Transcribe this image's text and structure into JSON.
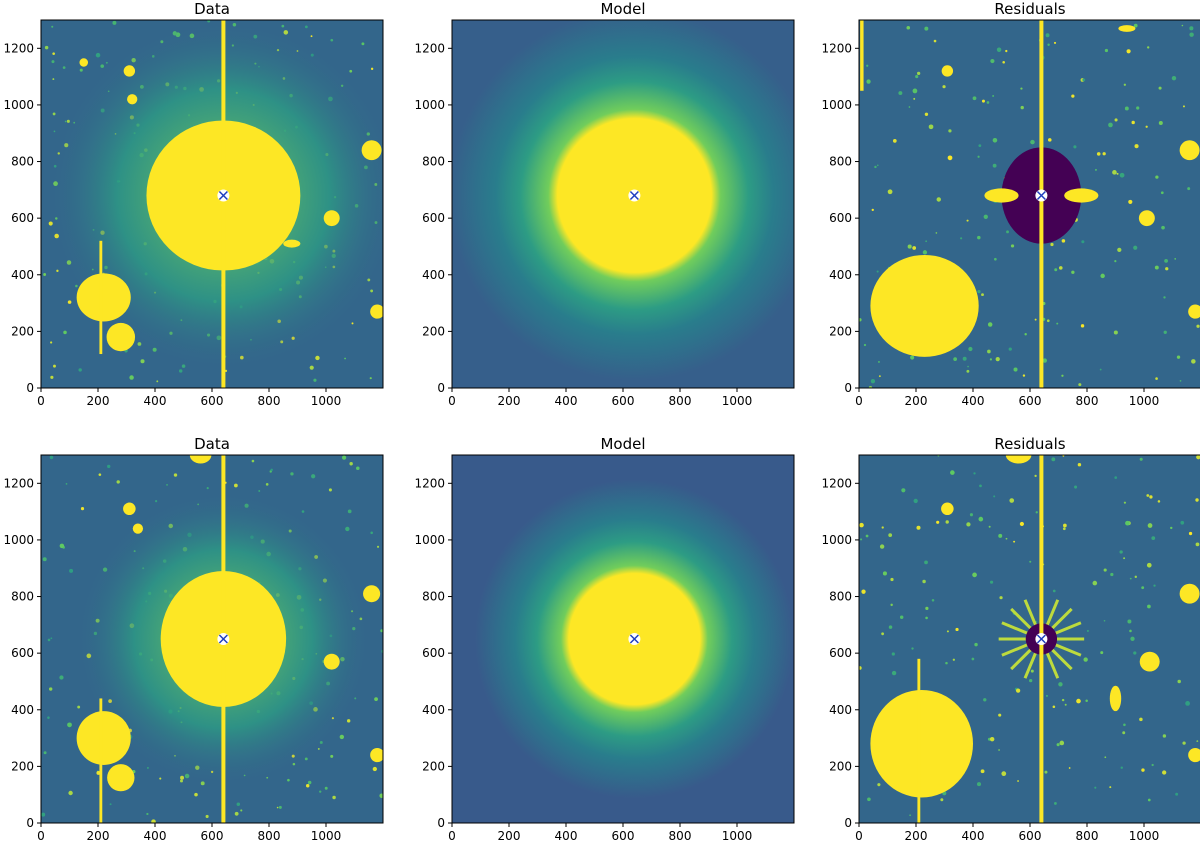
{
  "chart_data": [
    {
      "type": "heatmap",
      "title": "Data",
      "row": 0,
      "col": 0,
      "xlim": [
        0,
        1200
      ],
      "ylim": [
        0,
        1300
      ],
      "xticks": [
        0,
        200,
        400,
        600,
        800,
        1000
      ],
      "yticks": [
        0,
        200,
        400,
        600,
        800,
        1000,
        1200
      ],
      "center_marker": {
        "x": 640,
        "y": 680,
        "symbol": "x"
      },
      "colormap": [
        "#440154",
        "#3b528b",
        "#21918c",
        "#5ec962",
        "#fde725"
      ],
      "features": [
        {
          "kind": "halo",
          "x": 640,
          "y": 680,
          "r": 620,
          "level": 0.45
        },
        {
          "kind": "source",
          "x": 640,
          "y": 680,
          "rx": 270,
          "ry": 265,
          "level": 1
        },
        {
          "kind": "source",
          "x": 220,
          "y": 320,
          "rx": 95,
          "ry": 85,
          "level": 1
        },
        {
          "kind": "source",
          "x": 280,
          "y": 180,
          "rx": 50,
          "ry": 50,
          "level": 1
        },
        {
          "kind": "source",
          "x": 1160,
          "y": 840,
          "rx": 35,
          "ry": 35,
          "level": 1
        },
        {
          "kind": "source",
          "x": 1020,
          "y": 600,
          "rx": 28,
          "ry": 28,
          "level": 1
        },
        {
          "kind": "source",
          "x": 1180,
          "y": 270,
          "rx": 25,
          "ry": 25,
          "level": 1
        },
        {
          "kind": "source",
          "x": 880,
          "y": 510,
          "rx": 30,
          "ry": 14,
          "level": 1
        },
        {
          "kind": "source",
          "x": 310,
          "y": 1120,
          "rx": 20,
          "ry": 20,
          "level": 1
        },
        {
          "kind": "source",
          "x": 320,
          "y": 1020,
          "rx": 18,
          "ry": 18,
          "level": 1
        },
        {
          "kind": "source",
          "x": 150,
          "y": 1150,
          "rx": 15,
          "ry": 15,
          "level": 1
        },
        {
          "kind": "streak",
          "x": 640,
          "y0": 0,
          "y1": 1300,
          "width": 14
        },
        {
          "kind": "streak",
          "x": 210,
          "y0": 120,
          "y1": 520,
          "width": 10
        }
      ]
    },
    {
      "type": "heatmap",
      "title": "Model",
      "row": 0,
      "col": 1,
      "xlim": [
        0,
        1200
      ],
      "ylim": [
        0,
        1300
      ],
      "xticks": [
        0,
        200,
        400,
        600,
        800,
        1000
      ],
      "yticks": [
        0,
        200,
        400,
        600,
        800,
        1000,
        1200
      ],
      "center_marker": {
        "x": 640,
        "y": 680,
        "symbol": "x"
      },
      "colormap": [
        "#440154",
        "#3b528b",
        "#21918c",
        "#5ec962",
        "#fde725"
      ],
      "model_profile": {
        "x": 640,
        "y": 680,
        "core_r": 270,
        "halo_r": 650,
        "background_level": 0.3
      }
    },
    {
      "type": "heatmap",
      "title": "Residuals",
      "row": 0,
      "col": 2,
      "xlim": [
        0,
        1200
      ],
      "ylim": [
        0,
        1300
      ],
      "xticks": [
        0,
        200,
        400,
        600,
        800,
        1000
      ],
      "yticks": [
        0,
        200,
        400,
        600,
        800,
        1000,
        1200
      ],
      "center_marker": {
        "x": 640,
        "y": 680,
        "symbol": "x"
      },
      "colormap": [
        "#440154",
        "#3b528b",
        "#21918c",
        "#5ec962",
        "#fde725"
      ],
      "features": [
        {
          "kind": "source",
          "x": 230,
          "y": 290,
          "rx": 190,
          "ry": 180,
          "level": 1
        },
        {
          "kind": "deficit",
          "x": 640,
          "y": 680,
          "rx": 140,
          "ry": 170
        },
        {
          "kind": "source",
          "x": 780,
          "y": 680,
          "rx": 60,
          "ry": 25,
          "level": 1
        },
        {
          "kind": "source",
          "x": 500,
          "y": 680,
          "rx": 60,
          "ry": 25,
          "level": 1
        },
        {
          "kind": "source",
          "x": 1180,
          "y": 270,
          "rx": 25,
          "ry": 25,
          "level": 1
        },
        {
          "kind": "source",
          "x": 1160,
          "y": 840,
          "rx": 35,
          "ry": 35,
          "level": 1
        },
        {
          "kind": "source",
          "x": 1010,
          "y": 600,
          "rx": 28,
          "ry": 28,
          "level": 1
        },
        {
          "kind": "source",
          "x": 310,
          "y": 1120,
          "rx": 20,
          "ry": 20,
          "level": 1
        },
        {
          "kind": "source",
          "x": 940,
          "y": 1270,
          "rx": 30,
          "ry": 12,
          "level": 1
        },
        {
          "kind": "streak",
          "x": 640,
          "y0": 0,
          "y1": 1300,
          "width": 14
        },
        {
          "kind": "streak",
          "x": 10,
          "y0": 1050,
          "y1": 1300,
          "width": 12
        }
      ]
    },
    {
      "type": "heatmap",
      "title": "Data",
      "row": 1,
      "col": 0,
      "xlim": [
        0,
        1200
      ],
      "ylim": [
        0,
        1300
      ],
      "xticks": [
        0,
        200,
        400,
        600,
        800,
        1000
      ],
      "yticks": [
        0,
        200,
        400,
        600,
        800,
        1000,
        1200
      ],
      "center_marker": {
        "x": 640,
        "y": 650,
        "symbol": "x"
      },
      "colormap": [
        "#440154",
        "#3b528b",
        "#21918c",
        "#5ec962",
        "#fde725"
      ],
      "features": [
        {
          "kind": "halo",
          "x": 640,
          "y": 650,
          "r": 520,
          "level": 0.45
        },
        {
          "kind": "source",
          "x": 640,
          "y": 650,
          "rx": 220,
          "ry": 240,
          "level": 1
        },
        {
          "kind": "source",
          "x": 220,
          "y": 300,
          "rx": 95,
          "ry": 95,
          "level": 1
        },
        {
          "kind": "source",
          "x": 280,
          "y": 160,
          "rx": 48,
          "ry": 48,
          "level": 1
        },
        {
          "kind": "source",
          "x": 560,
          "y": 1300,
          "rx": 38,
          "ry": 30,
          "level": 1
        },
        {
          "kind": "source",
          "x": 1160,
          "y": 810,
          "rx": 30,
          "ry": 30,
          "level": 1
        },
        {
          "kind": "source",
          "x": 1020,
          "y": 570,
          "rx": 28,
          "ry": 28,
          "level": 1
        },
        {
          "kind": "source",
          "x": 1180,
          "y": 240,
          "rx": 25,
          "ry": 25,
          "level": 1
        },
        {
          "kind": "source",
          "x": 310,
          "y": 1110,
          "rx": 22,
          "ry": 22,
          "level": 1
        },
        {
          "kind": "source",
          "x": 340,
          "y": 1040,
          "rx": 18,
          "ry": 18,
          "level": 1
        },
        {
          "kind": "streak",
          "x": 640,
          "y0": 0,
          "y1": 1300,
          "width": 14
        },
        {
          "kind": "streak",
          "x": 210,
          "y0": 0,
          "y1": 440,
          "width": 10
        }
      ]
    },
    {
      "type": "heatmap",
      "title": "Model",
      "row": 1,
      "col": 1,
      "xlim": [
        0,
        1200
      ],
      "ylim": [
        0,
        1300
      ],
      "xticks": [
        0,
        200,
        400,
        600,
        800,
        1000
      ],
      "yticks": [
        0,
        200,
        400,
        600,
        800,
        1000,
        1200
      ],
      "center_marker": {
        "x": 640,
        "y": 650,
        "symbol": "x"
      },
      "colormap": [
        "#440154",
        "#3b528b",
        "#21918c",
        "#5ec962",
        "#fde725"
      ],
      "model_profile": {
        "x": 640,
        "y": 650,
        "core_r": 230,
        "halo_r": 560,
        "background_level": 0.28
      }
    },
    {
      "type": "heatmap",
      "title": "Residuals",
      "row": 1,
      "col": 2,
      "xlim": [
        0,
        1200
      ],
      "ylim": [
        0,
        1300
      ],
      "xticks": [
        0,
        200,
        400,
        600,
        800,
        1000
      ],
      "yticks": [
        0,
        200,
        400,
        600,
        800,
        1000,
        1200
      ],
      "center_marker": {
        "x": 640,
        "y": 650,
        "symbol": "x"
      },
      "colormap": [
        "#440154",
        "#3b528b",
        "#21918c",
        "#5ec962",
        "#fde725"
      ],
      "features": [
        {
          "kind": "source",
          "x": 220,
          "y": 280,
          "rx": 180,
          "ry": 190,
          "level": 1
        },
        {
          "kind": "spikes",
          "x": 640,
          "y": 650,
          "r": 150,
          "count": 16
        },
        {
          "kind": "deficit",
          "x": 640,
          "y": 650,
          "rx": 55,
          "ry": 55
        },
        {
          "kind": "source",
          "x": 1160,
          "y": 810,
          "rx": 35,
          "ry": 35,
          "level": 1
        },
        {
          "kind": "source",
          "x": 1020,
          "y": 570,
          "rx": 35,
          "ry": 35,
          "level": 1
        },
        {
          "kind": "source",
          "x": 1180,
          "y": 240,
          "rx": 25,
          "ry": 25,
          "level": 1
        },
        {
          "kind": "source",
          "x": 560,
          "y": 1300,
          "rx": 45,
          "ry": 30,
          "level": 1
        },
        {
          "kind": "source",
          "x": 310,
          "y": 1110,
          "rx": 22,
          "ry": 22,
          "level": 1
        },
        {
          "kind": "source",
          "x": 900,
          "y": 440,
          "rx": 20,
          "ry": 45,
          "level": 1
        },
        {
          "kind": "streak",
          "x": 640,
          "y0": 0,
          "y1": 1300,
          "width": 14
        },
        {
          "kind": "streak",
          "x": 210,
          "y0": 0,
          "y1": 580,
          "width": 10
        }
      ]
    }
  ]
}
